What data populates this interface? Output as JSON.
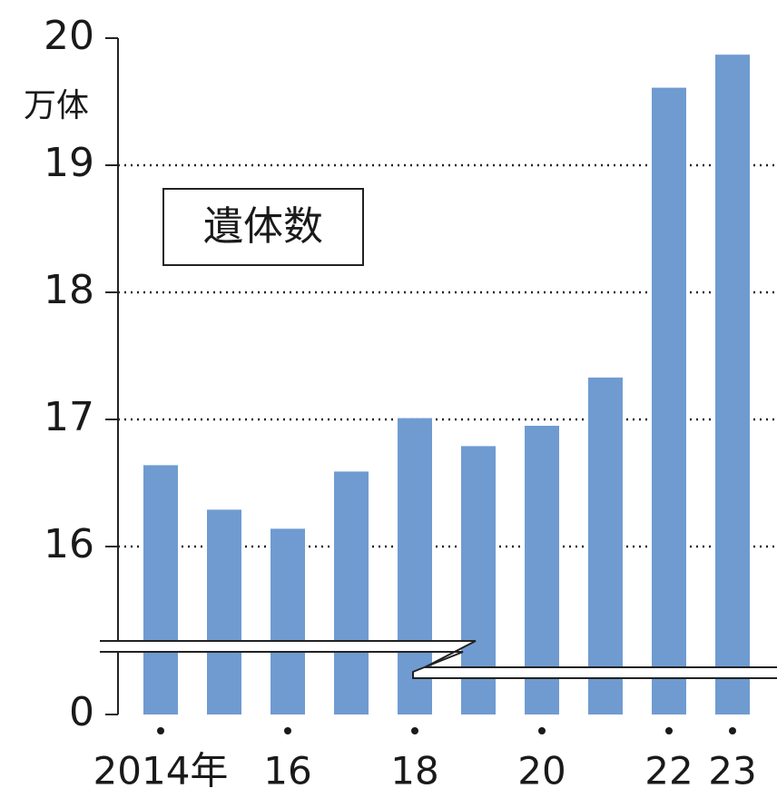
{
  "chart_data": {
    "type": "bar",
    "annotation": "遺体数",
    "y_unit": "万体",
    "categories": [
      "2014年",
      null,
      "16",
      null,
      "18",
      null,
      "20",
      null,
      "22",
      "23"
    ],
    "values": [
      16.64,
      16.29,
      16.14,
      16.59,
      17.01,
      16.79,
      16.95,
      17.33,
      19.61,
      19.87
    ],
    "color": "#6f9bd1",
    "ylim": [
      0,
      20
    ],
    "axis_break": [
      0,
      15.2
    ],
    "yticks": [
      0,
      16,
      17,
      18,
      19,
      20
    ],
    "grid": true
  }
}
